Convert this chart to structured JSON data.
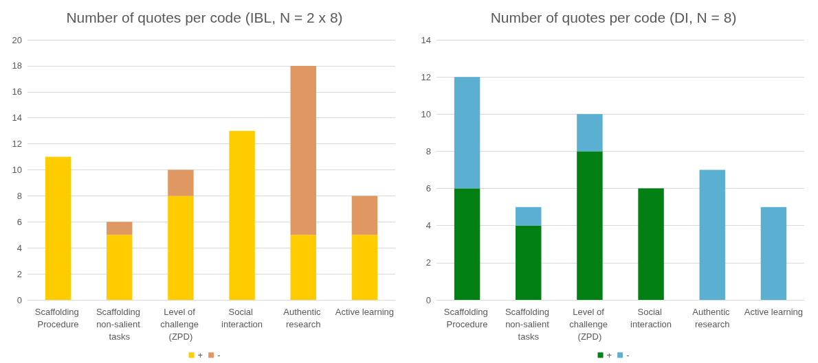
{
  "chart_data": [
    {
      "type": "bar",
      "title": "Number of quotes per code (IBL, N = 2 x 8)",
      "categories": [
        "Scaffolding Procedure",
        "Scaffolding non-salient tasks",
        "Level of challenge (ZPD)",
        "Social interaction",
        "Authentic research",
        "Active learning"
      ],
      "stacked": true,
      "series": [
        {
          "name": "+",
          "color": "#ffcc00",
          "values": [
            11,
            5,
            8,
            13,
            5,
            5
          ]
        },
        {
          "name": "-",
          "color": "#e09862",
          "values": [
            0,
            1,
            2,
            0,
            13,
            3
          ]
        }
      ],
      "ylim": [
        0,
        20
      ],
      "yticks": [
        0,
        2,
        4,
        6,
        8,
        10,
        12,
        14,
        16,
        18,
        20
      ],
      "grid": "y",
      "legend": "bottom"
    },
    {
      "type": "bar",
      "title": "Number of quotes per code (DI, N = 8)",
      "categories": [
        "Scaffolding Procedure",
        "Scaffolding non-salient tasks",
        "Level of challenge (ZPD)",
        "Social interaction",
        "Authentic research",
        "Active learning"
      ],
      "stacked": true,
      "series": [
        {
          "name": "+",
          "color": "#038014",
          "values": [
            6,
            4,
            8,
            6,
            0,
            0
          ]
        },
        {
          "name": "-",
          "color": "#5bafd0",
          "values": [
            6,
            1,
            2,
            0,
            7,
            5
          ]
        }
      ],
      "ylim": [
        0,
        14
      ],
      "yticks": [
        0,
        2,
        4,
        6,
        8,
        10,
        12,
        14
      ],
      "grid": "y",
      "legend": "bottom"
    }
  ]
}
